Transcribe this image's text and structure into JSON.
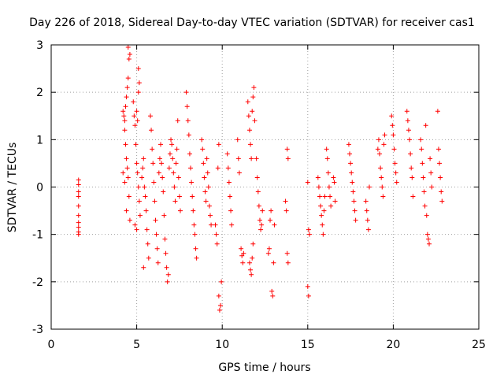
{
  "chart_data": {
    "type": "scatter",
    "title": "Day 226 of 2018, Sidereal Day-to-day VTEC variation (SDTVAR) for receiver cas1",
    "xlabel": "GPS time / hours",
    "ylabel": "SDTVAR / TECUs",
    "xlim": [
      0,
      25
    ],
    "ylim": [
      -3,
      3
    ],
    "xticks": [
      0,
      5,
      10,
      15,
      20,
      25
    ],
    "yticks": [
      -3,
      -2,
      -1,
      0,
      1,
      2,
      3
    ],
    "grid": true,
    "marker": "plus",
    "color": "#ff0000",
    "points": [
      [
        1.6,
        0.15
      ],
      [
        1.6,
        0.05
      ],
      [
        1.6,
        -0.1
      ],
      [
        1.6,
        -0.2
      ],
      [
        1.6,
        -0.4
      ],
      [
        1.6,
        -0.6
      ],
      [
        1.6,
        -0.75
      ],
      [
        1.6,
        -0.85
      ],
      [
        1.6,
        -0.95
      ],
      [
        1.6,
        -1.0
      ],
      [
        4.2,
        1.6
      ],
      [
        4.25,
        1.5
      ],
      [
        4.3,
        1.4
      ],
      [
        4.35,
        1.7
      ],
      [
        4.4,
        1.9
      ],
      [
        4.45,
        2.1
      ],
      [
        4.5,
        2.3
      ],
      [
        4.55,
        2.7
      ],
      [
        4.5,
        2.95
      ],
      [
        4.6,
        2.8
      ],
      [
        4.3,
        1.2
      ],
      [
        4.35,
        0.9
      ],
      [
        4.4,
        0.6
      ],
      [
        4.45,
        0.4
      ],
      [
        4.2,
        0.3
      ],
      [
        4.3,
        0.1
      ],
      [
        4.5,
        0.2
      ],
      [
        4.55,
        -0.2
      ],
      [
        4.4,
        -0.5
      ],
      [
        4.6,
        -0.7
      ],
      [
        4.8,
        1.8
      ],
      [
        4.85,
        1.5
      ],
      [
        4.9,
        1.3
      ],
      [
        5.0,
        1.6
      ],
      [
        5.05,
        1.4
      ],
      [
        5.1,
        2.0
      ],
      [
        5.1,
        2.5
      ],
      [
        5.15,
        2.2
      ],
      [
        4.95,
        0.9
      ],
      [
        5.0,
        0.5
      ],
      [
        5.05,
        0.3
      ],
      [
        5.1,
        0.0
      ],
      [
        5.15,
        -0.3
      ],
      [
        5.2,
        -0.6
      ],
      [
        4.9,
        -0.8
      ],
      [
        5.0,
        -0.9
      ],
      [
        5.3,
        0.2
      ],
      [
        5.35,
        0.4
      ],
      [
        5.4,
        0.6
      ],
      [
        5.45,
        0.0
      ],
      [
        5.5,
        -0.2
      ],
      [
        5.55,
        -0.5
      ],
      [
        5.6,
        -0.9
      ],
      [
        5.65,
        -1.2
      ],
      [
        5.7,
        -1.5
      ],
      [
        5.4,
        -1.7
      ],
      [
        5.8,
        1.5
      ],
      [
        5.85,
        1.2
      ],
      [
        5.9,
        0.8
      ],
      [
        5.95,
        0.5
      ],
      [
        6.0,
        0.1
      ],
      [
        6.05,
        -0.3
      ],
      [
        6.1,
        -0.7
      ],
      [
        6.15,
        -1.0
      ],
      [
        6.2,
        -1.3
      ],
      [
        6.25,
        -1.6
      ],
      [
        6.3,
        0.3
      ],
      [
        6.35,
        0.6
      ],
      [
        6.4,
        0.9
      ],
      [
        6.45,
        0.5
      ],
      [
        6.5,
        0.2
      ],
      [
        6.55,
        -0.1
      ],
      [
        6.6,
        -0.6
      ],
      [
        6.65,
        -1.1
      ],
      [
        6.7,
        -1.4
      ],
      [
        6.75,
        -1.7
      ],
      [
        6.8,
        -2.0
      ],
      [
        6.85,
        -1.85
      ],
      [
        6.9,
        0.4
      ],
      [
        6.95,
        0.7
      ],
      [
        7.0,
        1.0
      ],
      [
        7.05,
        0.9
      ],
      [
        7.1,
        0.6
      ],
      [
        7.15,
        0.3
      ],
      [
        7.2,
        0.0
      ],
      [
        7.25,
        -0.3
      ],
      [
        7.3,
        0.5
      ],
      [
        7.35,
        0.8
      ],
      [
        7.4,
        1.4
      ],
      [
        7.45,
        0.2
      ],
      [
        7.5,
        -0.2
      ],
      [
        7.55,
        -0.5
      ],
      [
        7.9,
        2.0
      ],
      [
        7.95,
        1.7
      ],
      [
        8.0,
        1.4
      ],
      [
        8.05,
        1.1
      ],
      [
        8.1,
        0.7
      ],
      [
        8.15,
        0.4
      ],
      [
        8.2,
        0.1
      ],
      [
        8.25,
        -0.2
      ],
      [
        8.3,
        -0.5
      ],
      [
        8.35,
        -0.8
      ],
      [
        8.4,
        -1.0
      ],
      [
        8.45,
        -1.3
      ],
      [
        8.5,
        -1.5
      ],
      [
        8.8,
        1.0
      ],
      [
        8.85,
        0.8
      ],
      [
        8.9,
        0.5
      ],
      [
        8.95,
        0.2
      ],
      [
        9.0,
        -0.1
      ],
      [
        9.05,
        -0.3
      ],
      [
        9.1,
        0.6
      ],
      [
        9.15,
        0.3
      ],
      [
        9.2,
        0.0
      ],
      [
        9.25,
        -0.4
      ],
      [
        9.3,
        -0.6
      ],
      [
        9.35,
        -0.8
      ],
      [
        9.6,
        -0.8
      ],
      [
        9.65,
        -1.0
      ],
      [
        9.7,
        -1.2
      ],
      [
        9.75,
        0.4
      ],
      [
        9.8,
        -2.3
      ],
      [
        9.85,
        -2.6
      ],
      [
        9.9,
        -2.5
      ],
      [
        9.95,
        -2.0
      ],
      [
        9.8,
        0.9
      ],
      [
        10.3,
        0.7
      ],
      [
        10.35,
        0.4
      ],
      [
        10.4,
        0.1
      ],
      [
        10.45,
        -0.2
      ],
      [
        10.5,
        -0.5
      ],
      [
        10.55,
        -0.8
      ],
      [
        10.9,
        1.0
      ],
      [
        10.95,
        0.6
      ],
      [
        11.0,
        0.3
      ],
      [
        11.1,
        -1.3
      ],
      [
        11.15,
        -1.45
      ],
      [
        11.2,
        -1.6
      ],
      [
        11.25,
        -1.4
      ],
      [
        11.5,
        1.8
      ],
      [
        11.55,
        1.5
      ],
      [
        11.6,
        1.2
      ],
      [
        11.65,
        0.9
      ],
      [
        11.7,
        0.6
      ],
      [
        11.75,
        1.6
      ],
      [
        11.8,
        1.9
      ],
      [
        11.85,
        2.1
      ],
      [
        11.9,
        1.4
      ],
      [
        11.6,
        -1.6
      ],
      [
        11.65,
        -1.75
      ],
      [
        11.7,
        -1.85
      ],
      [
        11.75,
        -1.5
      ],
      [
        11.8,
        -1.2
      ],
      [
        12.0,
        0.6
      ],
      [
        12.05,
        0.2
      ],
      [
        12.1,
        -0.1
      ],
      [
        12.15,
        -0.4
      ],
      [
        12.2,
        -0.7
      ],
      [
        12.25,
        -0.9
      ],
      [
        12.3,
        -0.8
      ],
      [
        12.35,
        -0.5
      ],
      [
        12.7,
        -1.4
      ],
      [
        12.75,
        -1.3
      ],
      [
        12.8,
        -0.7
      ],
      [
        12.85,
        -0.5
      ],
      [
        12.9,
        -2.2
      ],
      [
        12.95,
        -2.3
      ],
      [
        13.0,
        -1.6
      ],
      [
        13.05,
        -0.8
      ],
      [
        13.8,
        0.8
      ],
      [
        13.85,
        0.6
      ],
      [
        13.7,
        -0.3
      ],
      [
        13.75,
        -0.5
      ],
      [
        13.8,
        -1.4
      ],
      [
        13.85,
        -1.6
      ],
      [
        15.0,
        0.1
      ],
      [
        15.05,
        -0.9
      ],
      [
        15.1,
        -1.0
      ],
      [
        15.0,
        -2.1
      ],
      [
        15.05,
        -2.3
      ],
      [
        15.6,
        0.2
      ],
      [
        15.65,
        0.0
      ],
      [
        15.7,
        -0.2
      ],
      [
        15.75,
        -0.4
      ],
      [
        15.8,
        -0.6
      ],
      [
        15.85,
        -0.8
      ],
      [
        15.9,
        -1.0
      ],
      [
        15.95,
        -0.5
      ],
      [
        16.0,
        -0.2
      ],
      [
        16.1,
        0.8
      ],
      [
        16.15,
        0.6
      ],
      [
        16.2,
        0.3
      ],
      [
        16.25,
        0.0
      ],
      [
        16.3,
        -0.2
      ],
      [
        16.35,
        -0.4
      ],
      [
        16.5,
        0.2
      ],
      [
        16.55,
        0.1
      ],
      [
        16.6,
        -0.3
      ],
      [
        17.4,
        0.9
      ],
      [
        17.45,
        0.7
      ],
      [
        17.5,
        0.5
      ],
      [
        17.55,
        0.3
      ],
      [
        17.6,
        0.1
      ],
      [
        17.65,
        -0.1
      ],
      [
        17.7,
        -0.3
      ],
      [
        17.75,
        -0.5
      ],
      [
        17.8,
        -0.7
      ],
      [
        18.4,
        -0.3
      ],
      [
        18.45,
        -0.5
      ],
      [
        18.5,
        -0.7
      ],
      [
        18.55,
        -0.9
      ],
      [
        18.6,
        0.0
      ],
      [
        19.1,
        0.8
      ],
      [
        19.15,
        1.0
      ],
      [
        19.2,
        0.7
      ],
      [
        19.25,
        0.4
      ],
      [
        19.3,
        0.2
      ],
      [
        19.35,
        0.0
      ],
      [
        19.4,
        -0.2
      ],
      [
        19.45,
        0.9
      ],
      [
        19.5,
        1.1
      ],
      [
        19.9,
        1.5
      ],
      [
        19.95,
        1.3
      ],
      [
        20.0,
        1.1
      ],
      [
        20.05,
        0.8
      ],
      [
        20.1,
        0.5
      ],
      [
        20.15,
        0.3
      ],
      [
        20.2,
        0.1
      ],
      [
        20.8,
        1.6
      ],
      [
        20.85,
        1.4
      ],
      [
        20.9,
        1.2
      ],
      [
        20.95,
        1.0
      ],
      [
        21.0,
        0.7
      ],
      [
        21.05,
        0.4
      ],
      [
        21.1,
        0.2
      ],
      [
        21.15,
        -0.2
      ],
      [
        21.6,
        1.0
      ],
      [
        21.65,
        0.8
      ],
      [
        21.7,
        0.5
      ],
      [
        21.75,
        0.2
      ],
      [
        21.8,
        -0.1
      ],
      [
        21.85,
        -0.4
      ],
      [
        21.9,
        1.3
      ],
      [
        21.95,
        -0.6
      ],
      [
        22.0,
        -1.0
      ],
      [
        22.05,
        -1.1
      ],
      [
        22.1,
        -1.2
      ],
      [
        22.15,
        0.6
      ],
      [
        22.2,
        0.3
      ],
      [
        22.25,
        0.0
      ],
      [
        22.6,
        1.6
      ],
      [
        22.65,
        0.8
      ],
      [
        22.7,
        0.5
      ],
      [
        22.75,
        0.2
      ],
      [
        22.8,
        -0.1
      ],
      [
        22.85,
        -0.3
      ]
    ]
  }
}
